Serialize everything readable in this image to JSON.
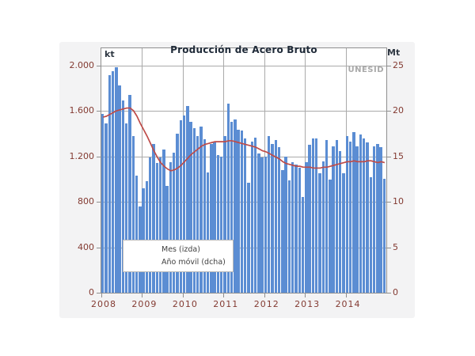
{
  "title": "Producción de Acero Bruto",
  "watermark": "UNESID",
  "left_axis": {
    "unit": "kt",
    "ticks": [
      {
        "label": "2.000",
        "value": 2000
      },
      {
        "label": "1.600",
        "value": 1600
      },
      {
        "label": "1.200",
        "value": 1200
      },
      {
        "label": "800",
        "value": 800
      },
      {
        "label": "400",
        "value": 400
      },
      {
        "label": "0",
        "value": 0
      }
    ],
    "min": 0,
    "max": 2000
  },
  "right_axis": {
    "unit": "Mt",
    "ticks": [
      {
        "label": "25",
        "value": 25
      },
      {
        "label": "20",
        "value": 20
      },
      {
        "label": "15",
        "value": 15
      },
      {
        "label": "10",
        "value": 10
      },
      {
        "label": "5",
        "value": 5
      },
      {
        "label": "0",
        "value": 0
      }
    ],
    "min": 0,
    "max": 25
  },
  "x_axis": {
    "year_labels": [
      "2008",
      "2009",
      "2010",
      "2011",
      "2012",
      "2013",
      "2014"
    ],
    "months_per_year": 12
  },
  "legend": [
    {
      "label": "Mes (izda)",
      "marker": "bar"
    },
    {
      "label": "Año móvil (dcha)",
      "marker": "line"
    }
  ],
  "colors": {
    "bar": "#5b8dd3",
    "line": "#be4b48",
    "axis_text": "#833a31",
    "title_text": "#1f2a38",
    "watermark_text": "#a9a9a9",
    "panel_bg": "#f3f3f4",
    "plot_bg": "#ffffff",
    "gridline": "#aaaaaa"
  },
  "chart_data": {
    "type": "bar",
    "title": "Producción de Acero Bruto",
    "x_years": [
      "2008",
      "2009",
      "2010",
      "2011",
      "2012",
      "2013",
      "2014"
    ],
    "points_per_year": 12,
    "grid": true,
    "legend_position": "inside-bottom-left",
    "series": [
      {
        "name": "Mes (izda)",
        "type": "bar",
        "axis": "left",
        "unit": "kt",
        "ylim": [
          0,
          2000
        ],
        "values": [
          1570,
          1490,
          1910,
          1950,
          1985,
          1820,
          1690,
          1490,
          1740,
          1375,
          1030,
          760,
          915,
          980,
          1190,
          1310,
          1140,
          1190,
          1260,
          940,
          1150,
          1230,
          1400,
          1520,
          1560,
          1640,
          1500,
          1450,
          1380,
          1460,
          1350,
          1060,
          1310,
          1330,
          1210,
          1200,
          1380,
          1660,
          1505,
          1525,
          1435,
          1425,
          1355,
          970,
          1330,
          1365,
          1225,
          1190,
          1195,
          1380,
          1310,
          1340,
          1280,
          1075,
          1195,
          985,
          1145,
          1125,
          1100,
          845,
          1145,
          1300,
          1355,
          1360,
          1050,
          1155,
          1345,
          995,
          1285,
          1340,
          1245,
          1050,
          1375,
          1330,
          1410,
          1285,
          1390,
          1355,
          1320,
          1015,
          1285,
          1305,
          1280,
          1000
        ]
      },
      {
        "name": "Año móvil (dcha)",
        "type": "line",
        "axis": "right",
        "unit": "Mt",
        "ylim": [
          0,
          25
        ],
        "values": [
          19.3,
          19.4,
          19.6,
          19.8,
          20.0,
          20.1,
          20.2,
          20.3,
          20.3,
          20.0,
          19.4,
          18.6,
          17.9,
          17.2,
          16.4,
          15.6,
          14.9,
          14.3,
          13.9,
          13.6,
          13.4,
          13.5,
          13.7,
          14.0,
          14.4,
          14.8,
          15.2,
          15.5,
          15.8,
          16.1,
          16.3,
          16.4,
          16.5,
          16.6,
          16.6,
          16.6,
          16.6,
          16.7,
          16.7,
          16.6,
          16.5,
          16.4,
          16.3,
          16.2,
          16.1,
          16.0,
          15.8,
          15.6,
          15.5,
          15.3,
          15.1,
          14.9,
          14.7,
          14.4,
          14.2,
          14.1,
          14.0,
          13.9,
          13.9,
          13.8,
          13.8,
          13.8,
          13.7,
          13.7,
          13.7,
          13.8,
          13.8,
          13.9,
          14.0,
          14.1,
          14.2,
          14.3,
          14.4,
          14.4,
          14.5,
          14.4,
          14.4,
          14.4,
          14.5,
          14.5,
          14.4,
          14.3,
          14.4,
          14.3
        ]
      }
    ]
  }
}
